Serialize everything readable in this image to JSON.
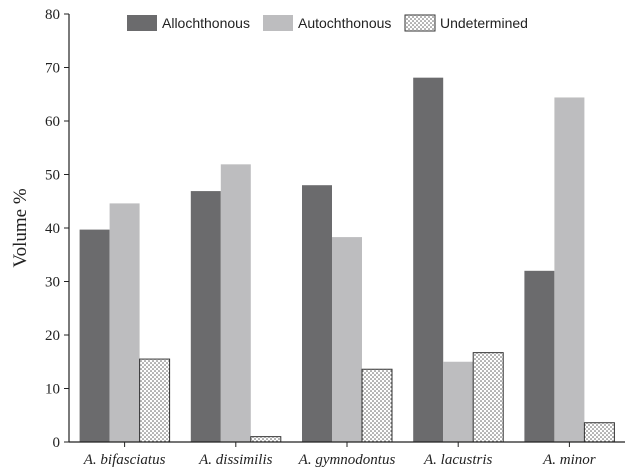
{
  "chart_data": {
    "type": "bar",
    "title": "",
    "xlabel": "",
    "ylabel": "Volume %",
    "ylim": [
      0,
      80
    ],
    "yticks": [
      0,
      10,
      20,
      30,
      40,
      50,
      60,
      70,
      80
    ],
    "grid": false,
    "legend_position": "top",
    "categories": [
      "A. bifasciatus",
      "A. dissimilis",
      "A. gymnodontus",
      "A. lacustris",
      "A. minor"
    ],
    "series": [
      {
        "name": "Allochthonous",
        "color": "#6b6b6d",
        "pattern": "solid",
        "values": [
          39.7,
          46.9,
          48.0,
          68.1,
          32.0
        ]
      },
      {
        "name": "Autochthonous",
        "color": "#bdbdbf",
        "pattern": "solid",
        "values": [
          44.6,
          51.9,
          38.3,
          15.0,
          64.4
        ]
      },
      {
        "name": "Undetermined",
        "color": "#ffffff",
        "pattern": "dotted",
        "values": [
          15.5,
          1.0,
          13.6,
          16.7,
          3.6
        ]
      }
    ]
  }
}
